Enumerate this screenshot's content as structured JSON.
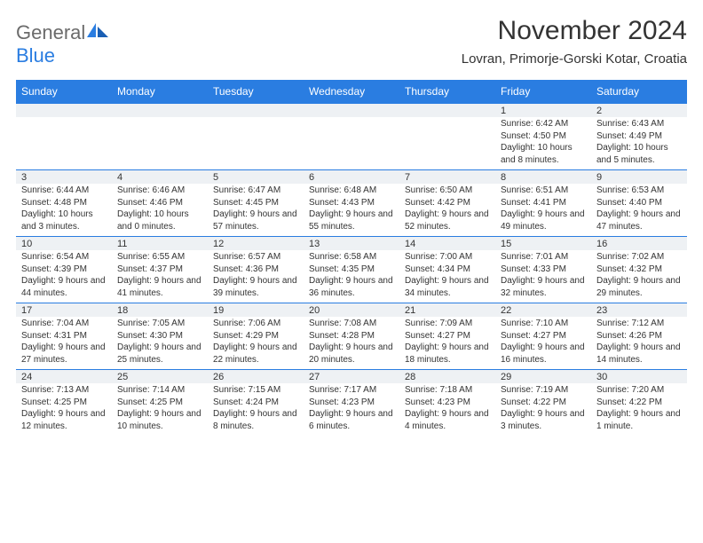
{
  "brand": {
    "part1": "General",
    "part2": "Blue"
  },
  "title": "November 2024",
  "location": "Lovran, Primorje-Gorski Kotar, Croatia",
  "colors": {
    "header_bg": "#2a7de1",
    "header_fg": "#ffffff",
    "daynum_bg": "#eef1f4",
    "border": "#2a7de1",
    "text": "#333333",
    "logo_gray": "#6b6b6b",
    "logo_blue": "#2a7de1",
    "page_bg": "#ffffff"
  },
  "dow": [
    "Sunday",
    "Monday",
    "Tuesday",
    "Wednesday",
    "Thursday",
    "Friday",
    "Saturday"
  ],
  "weeks": [
    [
      null,
      null,
      null,
      null,
      null,
      {
        "n": "1",
        "sr": "Sunrise: 6:42 AM",
        "ss": "Sunset: 4:50 PM",
        "dl": "Daylight: 10 hours and 8 minutes."
      },
      {
        "n": "2",
        "sr": "Sunrise: 6:43 AM",
        "ss": "Sunset: 4:49 PM",
        "dl": "Daylight: 10 hours and 5 minutes."
      }
    ],
    [
      {
        "n": "3",
        "sr": "Sunrise: 6:44 AM",
        "ss": "Sunset: 4:48 PM",
        "dl": "Daylight: 10 hours and 3 minutes."
      },
      {
        "n": "4",
        "sr": "Sunrise: 6:46 AM",
        "ss": "Sunset: 4:46 PM",
        "dl": "Daylight: 10 hours and 0 minutes."
      },
      {
        "n": "5",
        "sr": "Sunrise: 6:47 AM",
        "ss": "Sunset: 4:45 PM",
        "dl": "Daylight: 9 hours and 57 minutes."
      },
      {
        "n": "6",
        "sr": "Sunrise: 6:48 AM",
        "ss": "Sunset: 4:43 PM",
        "dl": "Daylight: 9 hours and 55 minutes."
      },
      {
        "n": "7",
        "sr": "Sunrise: 6:50 AM",
        "ss": "Sunset: 4:42 PM",
        "dl": "Daylight: 9 hours and 52 minutes."
      },
      {
        "n": "8",
        "sr": "Sunrise: 6:51 AM",
        "ss": "Sunset: 4:41 PM",
        "dl": "Daylight: 9 hours and 49 minutes."
      },
      {
        "n": "9",
        "sr": "Sunrise: 6:53 AM",
        "ss": "Sunset: 4:40 PM",
        "dl": "Daylight: 9 hours and 47 minutes."
      }
    ],
    [
      {
        "n": "10",
        "sr": "Sunrise: 6:54 AM",
        "ss": "Sunset: 4:39 PM",
        "dl": "Daylight: 9 hours and 44 minutes."
      },
      {
        "n": "11",
        "sr": "Sunrise: 6:55 AM",
        "ss": "Sunset: 4:37 PM",
        "dl": "Daylight: 9 hours and 41 minutes."
      },
      {
        "n": "12",
        "sr": "Sunrise: 6:57 AM",
        "ss": "Sunset: 4:36 PM",
        "dl": "Daylight: 9 hours and 39 minutes."
      },
      {
        "n": "13",
        "sr": "Sunrise: 6:58 AM",
        "ss": "Sunset: 4:35 PM",
        "dl": "Daylight: 9 hours and 36 minutes."
      },
      {
        "n": "14",
        "sr": "Sunrise: 7:00 AM",
        "ss": "Sunset: 4:34 PM",
        "dl": "Daylight: 9 hours and 34 minutes."
      },
      {
        "n": "15",
        "sr": "Sunrise: 7:01 AM",
        "ss": "Sunset: 4:33 PM",
        "dl": "Daylight: 9 hours and 32 minutes."
      },
      {
        "n": "16",
        "sr": "Sunrise: 7:02 AM",
        "ss": "Sunset: 4:32 PM",
        "dl": "Daylight: 9 hours and 29 minutes."
      }
    ],
    [
      {
        "n": "17",
        "sr": "Sunrise: 7:04 AM",
        "ss": "Sunset: 4:31 PM",
        "dl": "Daylight: 9 hours and 27 minutes."
      },
      {
        "n": "18",
        "sr": "Sunrise: 7:05 AM",
        "ss": "Sunset: 4:30 PM",
        "dl": "Daylight: 9 hours and 25 minutes."
      },
      {
        "n": "19",
        "sr": "Sunrise: 7:06 AM",
        "ss": "Sunset: 4:29 PM",
        "dl": "Daylight: 9 hours and 22 minutes."
      },
      {
        "n": "20",
        "sr": "Sunrise: 7:08 AM",
        "ss": "Sunset: 4:28 PM",
        "dl": "Daylight: 9 hours and 20 minutes."
      },
      {
        "n": "21",
        "sr": "Sunrise: 7:09 AM",
        "ss": "Sunset: 4:27 PM",
        "dl": "Daylight: 9 hours and 18 minutes."
      },
      {
        "n": "22",
        "sr": "Sunrise: 7:10 AM",
        "ss": "Sunset: 4:27 PM",
        "dl": "Daylight: 9 hours and 16 minutes."
      },
      {
        "n": "23",
        "sr": "Sunrise: 7:12 AM",
        "ss": "Sunset: 4:26 PM",
        "dl": "Daylight: 9 hours and 14 minutes."
      }
    ],
    [
      {
        "n": "24",
        "sr": "Sunrise: 7:13 AM",
        "ss": "Sunset: 4:25 PM",
        "dl": "Daylight: 9 hours and 12 minutes."
      },
      {
        "n": "25",
        "sr": "Sunrise: 7:14 AM",
        "ss": "Sunset: 4:25 PM",
        "dl": "Daylight: 9 hours and 10 minutes."
      },
      {
        "n": "26",
        "sr": "Sunrise: 7:15 AM",
        "ss": "Sunset: 4:24 PM",
        "dl": "Daylight: 9 hours and 8 minutes."
      },
      {
        "n": "27",
        "sr": "Sunrise: 7:17 AM",
        "ss": "Sunset: 4:23 PM",
        "dl": "Daylight: 9 hours and 6 minutes."
      },
      {
        "n": "28",
        "sr": "Sunrise: 7:18 AM",
        "ss": "Sunset: 4:23 PM",
        "dl": "Daylight: 9 hours and 4 minutes."
      },
      {
        "n": "29",
        "sr": "Sunrise: 7:19 AM",
        "ss": "Sunset: 4:22 PM",
        "dl": "Daylight: 9 hours and 3 minutes."
      },
      {
        "n": "30",
        "sr": "Sunrise: 7:20 AM",
        "ss": "Sunset: 4:22 PM",
        "dl": "Daylight: 9 hours and 1 minute."
      }
    ]
  ]
}
